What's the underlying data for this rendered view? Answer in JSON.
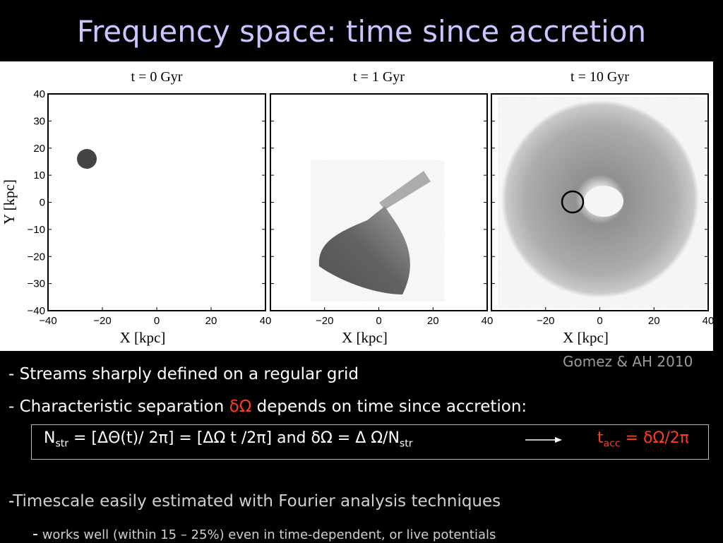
{
  "title": "Frequency space: time since accretion",
  "figure": {
    "ylabel": "Y [kpc]",
    "yticks": [
      {
        "value": 40,
        "label": "40"
      },
      {
        "value": 30,
        "label": "30"
      },
      {
        "value": 20,
        "label": "20"
      },
      {
        "value": 10,
        "label": "10"
      },
      {
        "value": 0,
        "label": "0"
      },
      {
        "value": -10,
        "label": "−10"
      },
      {
        "value": -20,
        "label": "−20"
      },
      {
        "value": -30,
        "label": "−30"
      },
      {
        "value": -40,
        "label": "−40"
      }
    ],
    "panels": [
      {
        "title": "t = 0 Gyr",
        "xlabel": "X [kpc]",
        "xticks": [
          {
            "value": -40,
            "label": "−40"
          },
          {
            "value": -20,
            "label": "−20"
          },
          {
            "value": 0,
            "label": "0"
          },
          {
            "value": 20,
            "label": "20"
          },
          {
            "value": 40,
            "label": "40"
          }
        ]
      },
      {
        "title": "t = 1 Gyr",
        "xlabel": "X [kpc]",
        "xticks": [
          {
            "value": -20,
            "label": "−20"
          },
          {
            "value": 0,
            "label": "0"
          },
          {
            "value": 20,
            "label": "20"
          },
          {
            "value": 40,
            "label": "40"
          }
        ]
      },
      {
        "title": "t = 10 Gyr",
        "xlabel": "X [kpc]",
        "xticks": [
          {
            "value": -20,
            "label": "−20"
          },
          {
            "value": 0,
            "label": "0"
          },
          {
            "value": 20,
            "label": "20"
          },
          {
            "value": 40,
            "label": "40"
          }
        ]
      }
    ]
  },
  "citation": "Gomez & AH 2010",
  "bullets": {
    "b1": "- Streams sharply defined on a regular grid",
    "b2_start": "- Characteristic separation ",
    "b2_symbol": "δΩ",
    "b2_end": " depends on time since accretion:",
    "eq_n": "N",
    "eq_sub1": "str",
    "eq_mid": " = [ΔΘ(t)/ 2π] = [ΔΩ t /2π] and δΩ = Δ Ω/N",
    "eq_sub2": "str",
    "eq_t": "t",
    "eq_sub3": "acc",
    "eq_end": " = δΩ/2π",
    "b3_dash": "-",
    "b3": "Timescale easily estimated with Fourier analysis techniques",
    "b4_dash": "-",
    "b4": "works well (within 15 – 25%) even in time-dependent, or live potentials"
  }
}
